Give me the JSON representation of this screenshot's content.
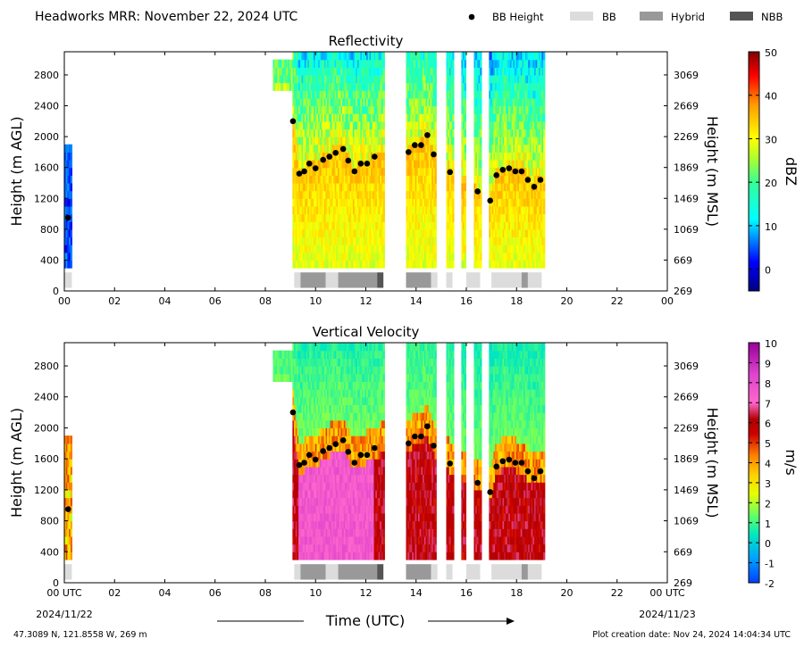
{
  "header": {
    "title": "Headworks MRR:  November 22, 2024 UTC",
    "legend": [
      {
        "label": "BB Height",
        "kind": "dot",
        "color": "#000000"
      },
      {
        "label": "BB",
        "kind": "box",
        "color": "#dcdcdc"
      },
      {
        "label": "Hybrid",
        "kind": "box",
        "color": "#999999"
      },
      {
        "label": "NBB",
        "kind": "box",
        "color": "#555555"
      }
    ]
  },
  "footer": {
    "location": "47.3089 N, 121.8558 W, 269 m",
    "creation": "Plot creation date: Nov 24, 2024 14:04:34 UTC",
    "date_start": "2024/11/22",
    "date_end": "2024/11/23"
  },
  "chart_data": [
    {
      "type": "heatmap",
      "title": "Reflectivity",
      "xlabel": "",
      "ylabel": "Height (m AGL)",
      "ylabel_right": "Height (m MSL)",
      "xlim": [
        0,
        24
      ],
      "ylim": [
        0,
        3100
      ],
      "x_ticks": [
        "00",
        "02",
        "04",
        "06",
        "08",
        "10",
        "12",
        "14",
        "16",
        "18",
        "20",
        "22",
        "00"
      ],
      "y_ticks": [
        0,
        400,
        800,
        1200,
        1600,
        2000,
        2400,
        2800
      ],
      "y_ticks_right": [
        "269",
        "669",
        "1069",
        "1469",
        "1869",
        "2269",
        "2669",
        "3069"
      ],
      "colorbar": {
        "label": "dBZ",
        "min": -5,
        "max": 50,
        "ticks": [
          0,
          10,
          20,
          30,
          40,
          50
        ]
      },
      "precip_periods": [
        [
          0.0,
          0.3
        ],
        [
          8.3,
          12.7
        ],
        [
          13.6,
          14.8
        ],
        [
          15.2,
          15.45
        ],
        [
          15.8,
          15.95
        ],
        [
          16.3,
          16.55
        ],
        [
          16.9,
          19.1
        ]
      ],
      "bb_height": {
        "x": [
          0.15,
          9.1,
          9.35,
          9.55,
          9.75,
          10.0,
          10.3,
          10.55,
          10.8,
          11.1,
          11.3,
          11.55,
          11.8,
          12.05,
          12.35,
          13.7,
          13.95,
          14.2,
          14.45,
          14.7,
          15.35,
          16.45,
          16.95,
          17.2,
          17.45,
          17.7,
          17.95,
          18.2,
          18.45,
          18.7,
          18.95
        ],
        "y": [
          950,
          2200,
          1520,
          1550,
          1650,
          1590,
          1700,
          1740,
          1790,
          1840,
          1690,
          1550,
          1650,
          1650,
          1740,
          1800,
          1890,
          1890,
          2020,
          1770,
          1540,
          1290,
          1170,
          1500,
          1570,
          1590,
          1550,
          1550,
          1440,
          1350,
          1440
        ]
      },
      "bb_type_bar": [
        {
          "x0": 0.0,
          "x1": 0.3,
          "type": "BB"
        },
        {
          "x0": 9.15,
          "x1": 9.4,
          "type": "BB"
        },
        {
          "x0": 9.4,
          "x1": 10.4,
          "type": "Hybrid"
        },
        {
          "x0": 10.4,
          "x1": 10.9,
          "type": "BB"
        },
        {
          "x0": 10.9,
          "x1": 12.45,
          "type": "Hybrid"
        },
        {
          "x0": 12.45,
          "x1": 12.7,
          "type": "NBB"
        },
        {
          "x0": 13.6,
          "x1": 14.6,
          "type": "Hybrid"
        },
        {
          "x0": 14.6,
          "x1": 14.85,
          "type": "BB"
        },
        {
          "x0": 15.2,
          "x1": 15.45,
          "type": "BB"
        },
        {
          "x0": 16.0,
          "x1": 16.55,
          "type": "BB"
        },
        {
          "x0": 17.0,
          "x1": 18.2,
          "type": "BB"
        },
        {
          "x0": 18.2,
          "x1": 18.45,
          "type": "Hybrid"
        },
        {
          "x0": 18.45,
          "x1": 19.0,
          "type": "BB"
        }
      ]
    },
    {
      "type": "heatmap",
      "title": "Vertical Velocity",
      "xlabel": "Time (UTC)",
      "ylabel": "Height (m AGL)",
      "ylabel_right": "Height (m MSL)",
      "xlim": [
        0,
        24
      ],
      "ylim": [
        0,
        3100
      ],
      "x_ticks": [
        "00 UTC",
        "02",
        "04",
        "06",
        "08",
        "10",
        "12",
        "14",
        "16",
        "18",
        "20",
        "22",
        "00 UTC"
      ],
      "y_ticks": [
        0,
        400,
        800,
        1200,
        1600,
        2000,
        2400,
        2800
      ],
      "y_ticks_right": [
        "269",
        "669",
        "1069",
        "1469",
        "1869",
        "2269",
        "2669",
        "3069"
      ],
      "colorbar": {
        "label": "m/s",
        "min": -2,
        "max": 10,
        "ticks": [
          -2,
          -1,
          0,
          1,
          2,
          3,
          4,
          5,
          6,
          7,
          8,
          9,
          10
        ]
      },
      "precip_periods": [
        [
          0.0,
          0.3
        ],
        [
          8.3,
          12.7
        ],
        [
          13.6,
          14.8
        ],
        [
          15.2,
          15.45
        ],
        [
          15.8,
          15.95
        ],
        [
          16.3,
          16.55
        ],
        [
          16.9,
          19.1
        ]
      ],
      "bb_height": {
        "x": [
          0.15,
          9.1,
          9.35,
          9.55,
          9.75,
          10.0,
          10.3,
          10.55,
          10.8,
          11.1,
          11.3,
          11.55,
          11.8,
          12.05,
          12.35,
          13.7,
          13.95,
          14.2,
          14.45,
          14.7,
          15.35,
          16.45,
          16.95,
          17.2,
          17.45,
          17.7,
          17.95,
          18.2,
          18.45,
          18.7,
          18.95
        ],
        "y": [
          950,
          2200,
          1520,
          1550,
          1650,
          1590,
          1700,
          1740,
          1790,
          1840,
          1690,
          1550,
          1650,
          1650,
          1740,
          1800,
          1890,
          1890,
          2020,
          1770,
          1540,
          1290,
          1170,
          1500,
          1570,
          1590,
          1550,
          1550,
          1440,
          1350,
          1440
        ]
      },
      "bb_type_bar": [
        {
          "x0": 0.0,
          "x1": 0.3,
          "type": "BB"
        },
        {
          "x0": 9.15,
          "x1": 9.4,
          "type": "BB"
        },
        {
          "x0": 9.4,
          "x1": 10.4,
          "type": "Hybrid"
        },
        {
          "x0": 10.4,
          "x1": 10.9,
          "type": "BB"
        },
        {
          "x0": 10.9,
          "x1": 12.45,
          "type": "Hybrid"
        },
        {
          "x0": 12.45,
          "x1": 12.7,
          "type": "NBB"
        },
        {
          "x0": 13.6,
          "x1": 14.6,
          "type": "Hybrid"
        },
        {
          "x0": 14.6,
          "x1": 14.85,
          "type": "BB"
        },
        {
          "x0": 15.2,
          "x1": 15.45,
          "type": "BB"
        },
        {
          "x0": 16.0,
          "x1": 16.55,
          "type": "BB"
        },
        {
          "x0": 17.0,
          "x1": 18.2,
          "type": "BB"
        },
        {
          "x0": 18.2,
          "x1": 18.45,
          "type": "Hybrid"
        },
        {
          "x0": 18.45,
          "x1": 19.0,
          "type": "BB"
        }
      ]
    }
  ]
}
